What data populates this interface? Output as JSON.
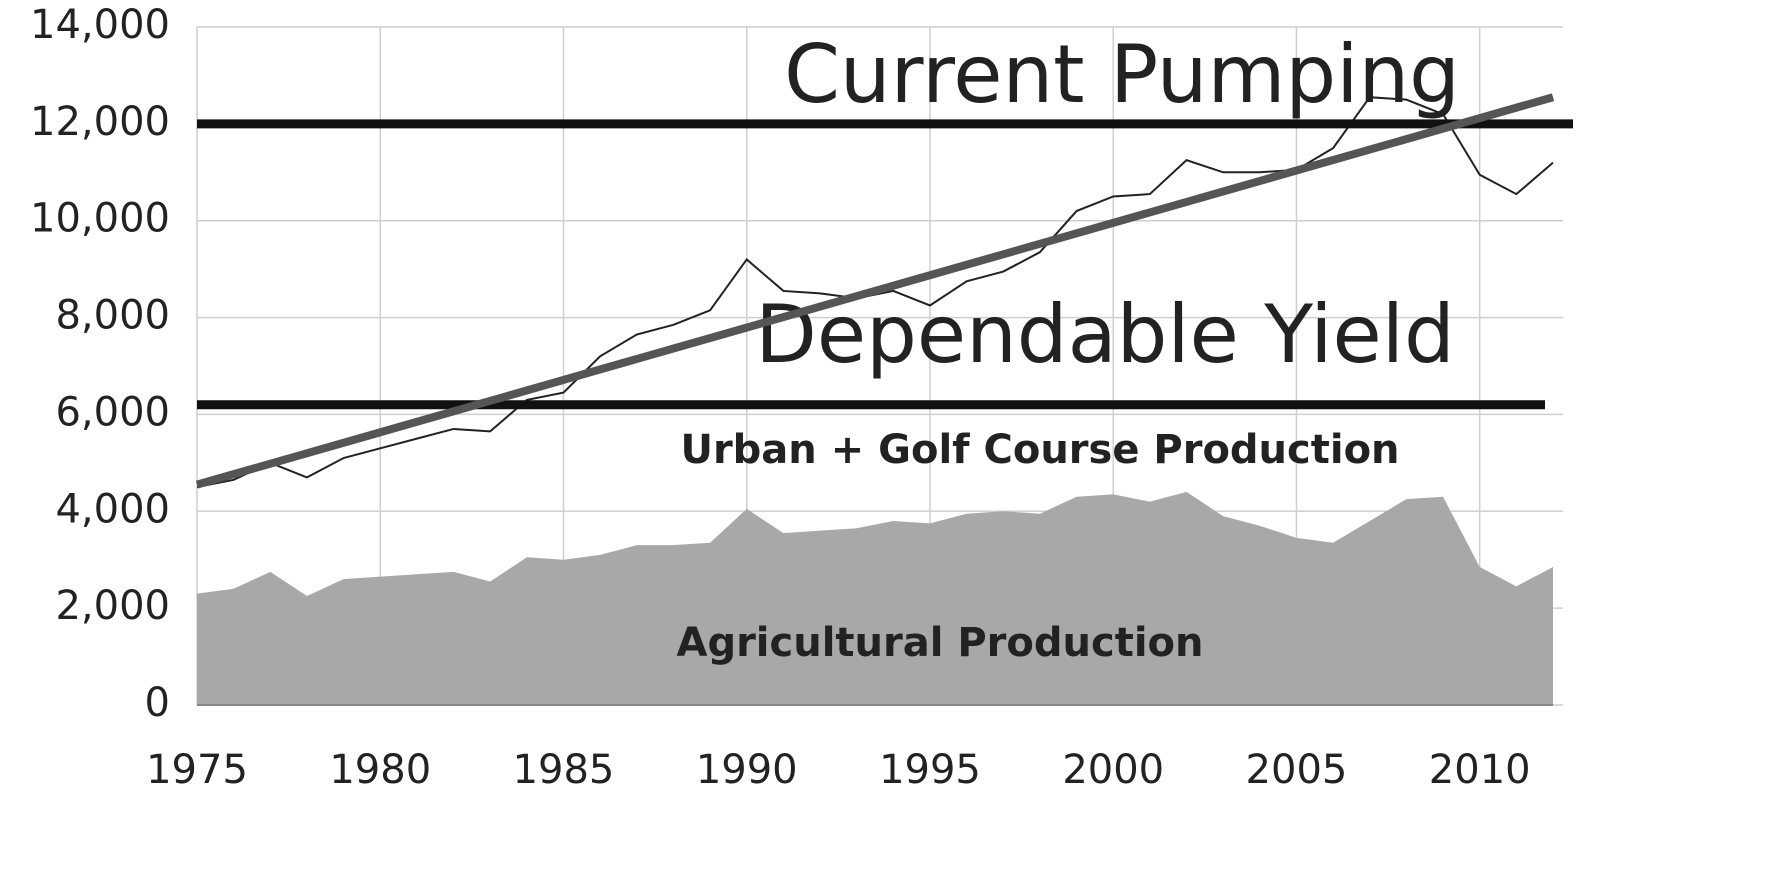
{
  "chart_data": {
    "type": "area",
    "x": [
      1975,
      1976,
      1977,
      1978,
      1979,
      1980,
      1981,
      1982,
      1983,
      1984,
      1985,
      1986,
      1987,
      1988,
      1989,
      1990,
      1991,
      1992,
      1993,
      1994,
      1995,
      1996,
      1997,
      1998,
      1999,
      2000,
      2001,
      2002,
      2003,
      2004,
      2005,
      2006,
      2007,
      2008,
      2009,
      2010,
      2011,
      2012
    ],
    "series": [
      {
        "type": "area",
        "color": "#a8a8a8",
        "values": [
          2300,
          2400,
          2750,
          2250,
          2600,
          2650,
          2700,
          2750,
          2550,
          3050,
          3000,
          3100,
          3300,
          3300,
          3350,
          4050,
          3550,
          3600,
          3650,
          3800,
          3750,
          3950,
          4000,
          3950,
          4300,
          4350,
          4200,
          4400,
          3900,
          3700,
          3450,
          3350,
          3800,
          4250,
          4300,
          2850,
          2450,
          2850
        ]
      },
      {
        "type": "line",
        "color": "#222222",
        "values": [
          4500,
          4650,
          5000,
          4700,
          5100,
          5300,
          5500,
          5700,
          5650,
          6300,
          6450,
          7200,
          7650,
          7850,
          8150,
          9200,
          8550,
          8500,
          8400,
          8550,
          8250,
          8750,
          8950,
          9350,
          10200,
          10500,
          10550,
          11250,
          11000,
          11000,
          11050,
          11500,
          12550,
          12500,
          12200,
          10950,
          10550,
          11200
        ]
      }
    ],
    "trendline": {
      "x": [
        1975,
        2012
      ],
      "values": [
        4550,
        12550
      ],
      "color": "#555555"
    },
    "reference_lines": [
      {
        "label": "Current Pumping",
        "value": 12000
      },
      {
        "label": "Dependable Yield",
        "value": 6200
      }
    ],
    "annotations": [
      "Urban + Golf Course Production",
      "Agricultural Production"
    ],
    "xlim": [
      1975,
      2012
    ],
    "xticks": [
      1975,
      1980,
      1985,
      1990,
      1995,
      2000,
      2005,
      2010
    ],
    "ylim": [
      0,
      14000
    ],
    "yticks": [
      0,
      {
        "value": 2000,
        "label": "2,000"
      },
      {
        "value": 4000,
        "label": "4,000"
      },
      {
        "value": 6000,
        "label": "6,000"
      },
      {
        "value": 8000,
        "label": "8,000"
      },
      {
        "value": 10000,
        "label": "10,000"
      },
      {
        "value": 12000,
        "label": "12,000"
      },
      {
        "value": 14000,
        "label": "14,000"
      }
    ],
    "grid": true
  }
}
